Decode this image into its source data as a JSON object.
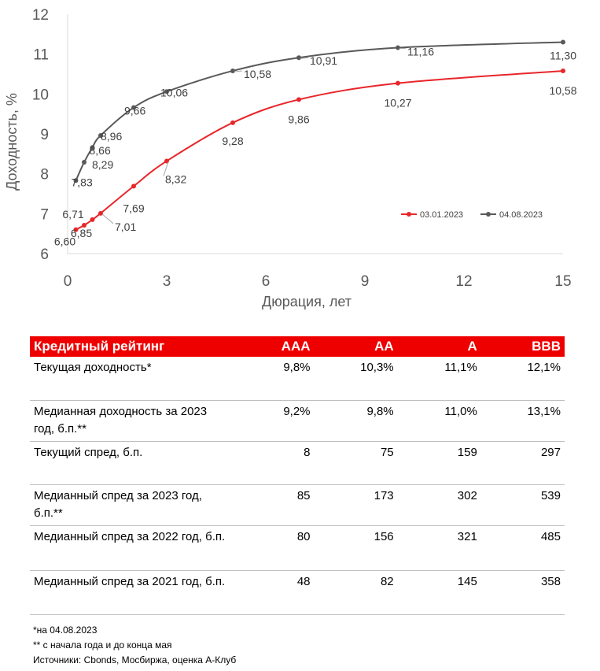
{
  "chart_data": {
    "type": "line",
    "xlabel": "Дюрация, лет",
    "ylabel": "Доходность, %",
    "xlim": [
      0,
      15
    ],
    "ylim": [
      6,
      12
    ],
    "xticks": [
      0,
      3,
      6,
      9,
      12,
      15
    ],
    "yticks": [
      6,
      7,
      8,
      9,
      10,
      11,
      12
    ],
    "grid": false,
    "legend_position": "right",
    "series": [
      {
        "name": "03.01.2023",
        "color": "#e8262a",
        "x": [
          0.25,
          0.5,
          0.75,
          1,
          2,
          3,
          5,
          7,
          10,
          15
        ],
        "y": [
          6.6,
          6.71,
          6.85,
          7.01,
          7.69,
          8.32,
          9.28,
          9.86,
          10.27,
          10.58
        ],
        "labels": [
          "6,60",
          "6,71",
          "6,85",
          "7,01",
          "7,69",
          "8,32",
          "9,28",
          "9,86",
          "10,27",
          "10,58"
        ]
      },
      {
        "name": "04.08.2023",
        "color": "#595959",
        "x": [
          0.25,
          0.5,
          0.75,
          1,
          2,
          3,
          5,
          7,
          10,
          15
        ],
        "y": [
          7.83,
          8.29,
          8.66,
          8.96,
          9.66,
          10.06,
          10.58,
          10.91,
          11.16,
          11.3
        ],
        "labels": [
          "7,83",
          "8,29",
          "8,66",
          "8,96",
          "9,66",
          "10,06",
          "10,58",
          "10,91",
          "11,16",
          "11,30"
        ]
      }
    ]
  },
  "table": {
    "headers": [
      "Кредитный рейтинг",
      "AAA",
      "AA",
      "A",
      "BBB"
    ],
    "rows": [
      [
        "Текущая доходность*",
        "9,8%",
        "10,3%",
        "11,1%",
        "12,1%"
      ],
      [
        "Медианная доходность за 2023 год, б.п.**",
        "9,2%",
        "9,8%",
        "11,0%",
        "13,1%"
      ],
      [
        "Текущий спред, б.п.",
        "8",
        "75",
        "159",
        "297"
      ],
      [
        "Медианный спред за 2023 год, б.п.**",
        "85",
        "173",
        "302",
        "539"
      ],
      [
        "Медианный спред за 2022 год, б.п.",
        "80",
        "156",
        "321",
        "485"
      ],
      [
        "Медианный спред за 2021 год, б.п.",
        "48",
        "82",
        "145",
        "358"
      ]
    ]
  },
  "notes": [
    "*на  04.08.2023",
    "** с начала года и до конца мая",
    "Источники: Cbonds, Мосбиржа, оценка А-Клуб"
  ]
}
